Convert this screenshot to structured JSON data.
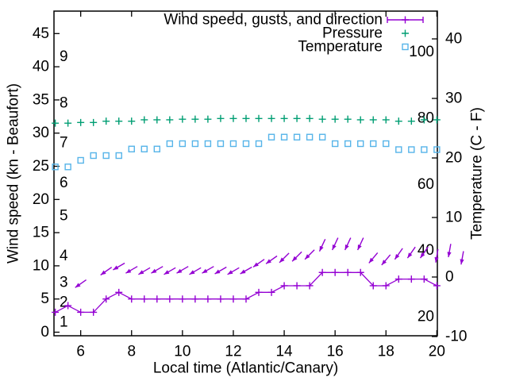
{
  "chart_data": {
    "type": "line",
    "title": "",
    "xlabel": "Local time (Atlantic/Canary)",
    "ylabel_left": "Wind speed (kn - Beaufort)",
    "ylabel_right": "Temperature (C - F)",
    "legend": [
      {
        "series": "wind",
        "label": "Wind speed, gusts, and direction"
      },
      {
        "series": "pressure",
        "label": "Pressure"
      },
      {
        "series": "temperature",
        "label": "Temperature"
      }
    ],
    "legend_position": "top-right-inside",
    "grid": false,
    "x_ticks": [
      "6",
      "8",
      "10",
      "12",
      "14",
      "16",
      "18",
      "20"
    ],
    "y_left_ticks": [
      "0",
      "5",
      "10",
      "15",
      "20",
      "25",
      "30",
      "35",
      "40",
      "45"
    ],
    "y_right_ticks": [
      "-10",
      "0",
      "10",
      "20",
      "30",
      "40"
    ],
    "beaufort_inner_labels": [
      {
        "text": "1",
        "kn": 1.5
      },
      {
        "text": "2",
        "kn": 4.5
      },
      {
        "text": "3",
        "kn": 7.5
      },
      {
        "text": "4",
        "kn": 11.5
      },
      {
        "text": "5",
        "kn": 17.5
      },
      {
        "text": "6",
        "kn": 22.5
      },
      {
        "text": "7",
        "kn": 28.5
      },
      {
        "text": "8",
        "kn": 34.5
      },
      {
        "text": "9",
        "kn": 41.5
      }
    ],
    "fahrenheit_inner_labels": [
      {
        "text": "20",
        "c": -6.67
      },
      {
        "text": "40",
        "c": 4.44
      },
      {
        "text": "60",
        "c": 15.56
      },
      {
        "text": "80",
        "c": 26.67
      },
      {
        "text": "100",
        "c": 37.78
      }
    ],
    "axis_ranges": {
      "x_hours": [
        4.95,
        20.02
      ],
      "y_left_kn": [
        -0.54,
        48.4
      ],
      "y_right_c": [
        -9.87,
        44.67
      ]
    },
    "x_hours": [
      5,
      5.5,
      6,
      6.5,
      7,
      7.5,
      8,
      8.5,
      9,
      9.5,
      10,
      10.5,
      11,
      11.5,
      12,
      12.5,
      13,
      13.5,
      14,
      14.5,
      15,
      15.5,
      16,
      16.5,
      17,
      17.5,
      18,
      18.5,
      19,
      19.5,
      20
    ],
    "series": {
      "wind_speed_kn": [
        3,
        4,
        3,
        3,
        5,
        6,
        5,
        5,
        5,
        5,
        5,
        5,
        5,
        5,
        5,
        5,
        6,
        6,
        7,
        7,
        7,
        9,
        9,
        9,
        9,
        7,
        7,
        8,
        8,
        8,
        7
      ],
      "pressure_plotted_on_kn_scale": [
        31.5,
        31.5,
        31.6,
        31.6,
        31.8,
        31.8,
        31.8,
        32.0,
        32.0,
        32.0,
        32.1,
        32.1,
        32.1,
        32.2,
        32.2,
        32.2,
        32.2,
        32.2,
        32.2,
        32.2,
        32.2,
        32.1,
        32.1,
        32.1,
        32.0,
        32.0,
        32.0,
        31.8,
        31.8,
        32.0,
        32.0
      ],
      "temperature_c": [
        18.5,
        18.5,
        19.6,
        20.4,
        20.4,
        20.4,
        21.5,
        21.5,
        21.5,
        22.4,
        22.4,
        22.4,
        22.4,
        22.4,
        22.4,
        22.4,
        22.4,
        23.5,
        23.5,
        23.5,
        23.5,
        23.5,
        22.4,
        22.4,
        22.4,
        22.4,
        22.4,
        21.4,
        21.4,
        21.4,
        21.4
      ]
    },
    "wind_arrows_gust_kn_and_bearing": [
      {
        "t": 6,
        "kn": 7.3,
        "bearing_deg": 235
      },
      {
        "t": 7,
        "kn": 9.2,
        "bearing_deg": 235
      },
      {
        "t": 7.5,
        "kn": 9.9,
        "bearing_deg": 240
      },
      {
        "t": 8,
        "kn": 9.4,
        "bearing_deg": 240
      },
      {
        "t": 8.5,
        "kn": 9.2,
        "bearing_deg": 240
      },
      {
        "t": 9,
        "kn": 9.4,
        "bearing_deg": 240
      },
      {
        "t": 9.5,
        "kn": 9.2,
        "bearing_deg": 240
      },
      {
        "t": 10,
        "kn": 9.4,
        "bearing_deg": 240
      },
      {
        "t": 10.5,
        "kn": 9.2,
        "bearing_deg": 240
      },
      {
        "t": 11,
        "kn": 9.4,
        "bearing_deg": 240
      },
      {
        "t": 11.5,
        "kn": 9.3,
        "bearing_deg": 240
      },
      {
        "t": 12,
        "kn": 9.2,
        "bearing_deg": 240
      },
      {
        "t": 12.5,
        "kn": 9.3,
        "bearing_deg": 240
      },
      {
        "t": 13,
        "kn": 10.4,
        "bearing_deg": 235
      },
      {
        "t": 13.5,
        "kn": 10.9,
        "bearing_deg": 235
      },
      {
        "t": 14,
        "kn": 11.2,
        "bearing_deg": 225
      },
      {
        "t": 14.5,
        "kn": 11.4,
        "bearing_deg": 225
      },
      {
        "t": 15,
        "kn": 11.7,
        "bearing_deg": 225
      },
      {
        "t": 15.5,
        "kn": 13.1,
        "bearing_deg": 205
      },
      {
        "t": 16,
        "kn": 13.3,
        "bearing_deg": 205
      },
      {
        "t": 16.5,
        "kn": 13.3,
        "bearing_deg": 205
      },
      {
        "t": 17,
        "kn": 13.3,
        "bearing_deg": 205
      },
      {
        "t": 17.5,
        "kn": 11.2,
        "bearing_deg": 220
      },
      {
        "t": 18,
        "kn": 10.9,
        "bearing_deg": 220
      },
      {
        "t": 18.5,
        "kn": 11.8,
        "bearing_deg": 215
      },
      {
        "t": 19,
        "kn": 12.0,
        "bearing_deg": 215
      },
      {
        "t": 19.5,
        "kn": 12.0,
        "bearing_deg": 215
      },
      {
        "t": 20,
        "kn": 11.5,
        "bearing_deg": 190
      },
      {
        "t": 20.5,
        "kn": 12.3,
        "bearing_deg": 190
      },
      {
        "t": 21,
        "kn": 11.2,
        "bearing_deg": 190
      }
    ],
    "colors": {
      "wind": "#9400d3",
      "pressure": "#009e73",
      "temperature": "#56b4e9",
      "axis": "#000000",
      "background": "#ffffff"
    }
  }
}
